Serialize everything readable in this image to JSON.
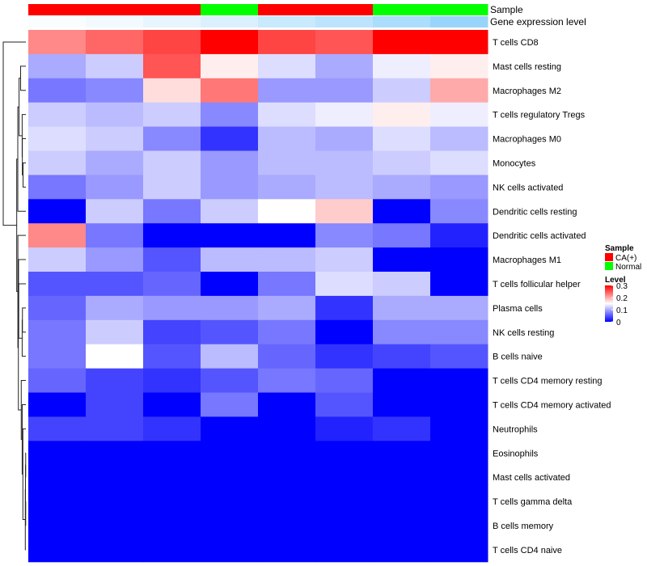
{
  "chart_data": {
    "type": "heatmap",
    "columns": 8,
    "rows": [
      "T cells CD8",
      "Mast cells resting",
      "Macrophages M2",
      "T cells regulatory  Tregs",
      "Macrophages M0",
      "Monocytes",
      "NK cells activated",
      "Dendritic cells resting",
      "Dendritic cells activated",
      "Macrophages M1",
      "T cells follicular helper",
      "Plasma cells",
      "NK cells resting",
      "B cells naive",
      "T cells CD4 memory resting",
      "T cells CD4 memory activated",
      "Neutrophils",
      "Eosinophils",
      "Mast cells activated",
      "T cells gamma delta",
      "B cells memory",
      "T cells CD4 naive"
    ],
    "values": [
      [
        0.22,
        0.24,
        0.26,
        0.3,
        0.26,
        0.25,
        0.3,
        0.3
      ],
      [
        0.1,
        0.12,
        0.25,
        0.16,
        0.13,
        0.1,
        0.14,
        0.16
      ],
      [
        0.07,
        0.08,
        0.17,
        0.23,
        0.09,
        0.09,
        0.12,
        0.2
      ],
      [
        0.12,
        0.11,
        0.12,
        0.08,
        0.13,
        0.14,
        0.16,
        0.14
      ],
      [
        0.13,
        0.12,
        0.08,
        0.03,
        0.11,
        0.1,
        0.13,
        0.11
      ],
      [
        0.12,
        0.1,
        0.12,
        0.09,
        0.11,
        0.11,
        0.12,
        0.13
      ],
      [
        0.07,
        0.09,
        0.12,
        0.09,
        0.1,
        0.11,
        0.1,
        0.09
      ],
      [
        0.0,
        0.12,
        0.07,
        0.12,
        0.15,
        0.18,
        0.0,
        0.08
      ],
      [
        0.22,
        0.07,
        0.0,
        0.0,
        0.0,
        0.08,
        0.07,
        0.02
      ],
      [
        0.12,
        0.09,
        0.05,
        0.11,
        0.11,
        0.12,
        0.0,
        0.0
      ],
      [
        0.05,
        0.05,
        0.06,
        0.0,
        0.07,
        0.13,
        0.12,
        0.0
      ],
      [
        0.06,
        0.1,
        0.09,
        0.09,
        0.1,
        0.03,
        0.1,
        0.1
      ],
      [
        0.07,
        0.12,
        0.04,
        0.05,
        0.07,
        0.0,
        0.08,
        0.08
      ],
      [
        0.07,
        0.15,
        0.05,
        0.11,
        0.06,
        0.03,
        0.04,
        0.05
      ],
      [
        0.06,
        0.04,
        0.03,
        0.05,
        0.07,
        0.06,
        0.0,
        0.0
      ],
      [
        0.0,
        0.04,
        0.0,
        0.07,
        0.0,
        0.05,
        0.0,
        0.0
      ],
      [
        0.04,
        0.04,
        0.03,
        0.0,
        0.0,
        0.02,
        0.03,
        0.0
      ],
      [
        0.0,
        0.0,
        0.0,
        0.0,
        0.0,
        0.0,
        0.0,
        0.0
      ],
      [
        0.0,
        0.0,
        0.0,
        0.0,
        0.0,
        0.0,
        0.0,
        0.0
      ],
      [
        0.0,
        0.0,
        0.0,
        0.0,
        0.0,
        0.0,
        0.0,
        0.0
      ],
      [
        0.0,
        0.0,
        0.0,
        0.0,
        0.0,
        0.0,
        0.0,
        0.0
      ],
      [
        0.0,
        0.0,
        0.0,
        0.0,
        0.0,
        0.0,
        0.0,
        0.0
      ]
    ],
    "annotations": [
      {
        "name": "Sample",
        "values": [
          "CA(+)",
          "CA(+)",
          "CA(+)",
          "Normal",
          "CA(+)",
          "CA(+)",
          "Normal",
          "Normal"
        ]
      },
      {
        "name": "Gene expression level",
        "values": [
          0.05,
          0.1,
          0.2,
          0.3,
          0.45,
          0.55,
          0.7,
          0.85
        ]
      }
    ],
    "sample_legend": {
      "title": "Sample",
      "entries": [
        {
          "label": "CA(+)",
          "color": "#ff0000"
        },
        {
          "label": "Normal",
          "color": "#00ff00"
        }
      ]
    },
    "level_legend": {
      "title": "Level",
      "ticks": [
        "0.3",
        "0.2",
        "0.1",
        "0"
      ],
      "tick_values": [
        0.3,
        0.2,
        0.1,
        0.0
      ],
      "range": [
        0,
        0.3
      ]
    },
    "color_scale": {
      "low": "#0000ff",
      "mid": "#ffffff",
      "high": "#ff0000",
      "midpoint": 0.15
    },
    "gene_expr_colors": {
      "low": "#ffffff",
      "high": "#87cefa"
    },
    "row_dendrogram": true,
    "legend_position": "right"
  }
}
